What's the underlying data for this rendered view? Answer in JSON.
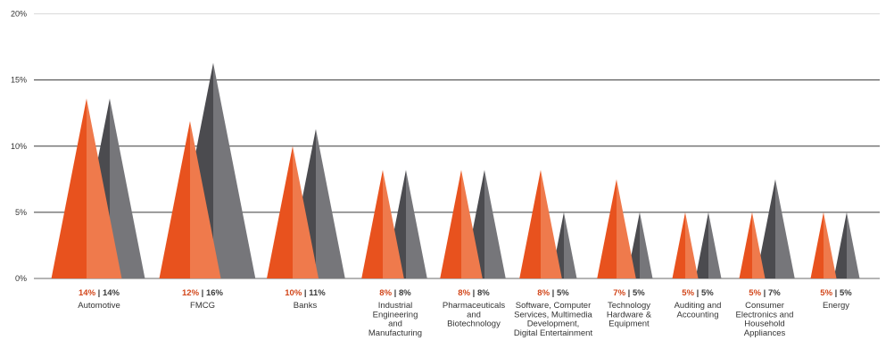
{
  "chart_data": {
    "type": "bar",
    "categories": [
      "Automotive",
      "FMCG",
      "Banks",
      "Industrial Engineering and Manufacturing",
      "Pharmaceuticals and Biotechnology",
      "Software, Computer Services, Multimedia Development, Digital Entertainment",
      "Technology Hardware & Equipment",
      "Auditing and Accounting",
      "Consumer Electronics and Household Appliances",
      "Energy"
    ],
    "category_lines": [
      [
        "Automotive"
      ],
      [
        "FMCG"
      ],
      [
        "Banks"
      ],
      [
        "Industrial",
        "Engineering",
        "and",
        "Manufacturing"
      ],
      [
        "Pharmaceuticals",
        "and",
        "Biotechnology"
      ],
      [
        "Software, Computer",
        "Services, Multimedia",
        "Development,",
        "Digital Entertainment"
      ],
      [
        "Technology",
        "Hardware &",
        "Equipment"
      ],
      [
        "Auditing and",
        "Accounting"
      ],
      [
        "Consumer",
        "Electronics and",
        "Household",
        "Appliances"
      ],
      [
        "Energy"
      ]
    ],
    "series": [
      {
        "values": [
          13.6,
          11.9,
          10.0,
          8.2,
          8.2,
          8.2,
          7.5,
          5.0,
          5.0,
          5.0
        ]
      },
      {
        "values": [
          13.6,
          16.3,
          11.3,
          8.2,
          8.2,
          5.0,
          5.0,
          5.0,
          7.5,
          5.0
        ]
      }
    ],
    "value_labels": [
      [
        "14%",
        "14%"
      ],
      [
        "12%",
        "16%"
      ],
      [
        "10%",
        "11%"
      ],
      [
        "8%",
        "8%"
      ],
      [
        "8%",
        "8%"
      ],
      [
        "8%",
        "5%"
      ],
      [
        "7%",
        "5%"
      ],
      [
        "5%",
        "5%"
      ],
      [
        "5%",
        "7%"
      ],
      [
        "5%",
        "5%"
      ]
    ],
    "label_separator": "|",
    "y_ticks": [
      "0%",
      "5%",
      "10%",
      "15%",
      "20%"
    ],
    "ylim": [
      0,
      20
    ],
    "grid": true,
    "colors": {
      "series1_light": "#EF7A4C",
      "series1_dark": "#E8521E",
      "series2_light": "#76767A",
      "series2_dark": "#4B4B4F",
      "series1_label": "#D2461A",
      "series2_label": "#3A3A3A",
      "grid_major": "#3A3A3A",
      "grid_top": "#D9D9D9"
    }
  }
}
